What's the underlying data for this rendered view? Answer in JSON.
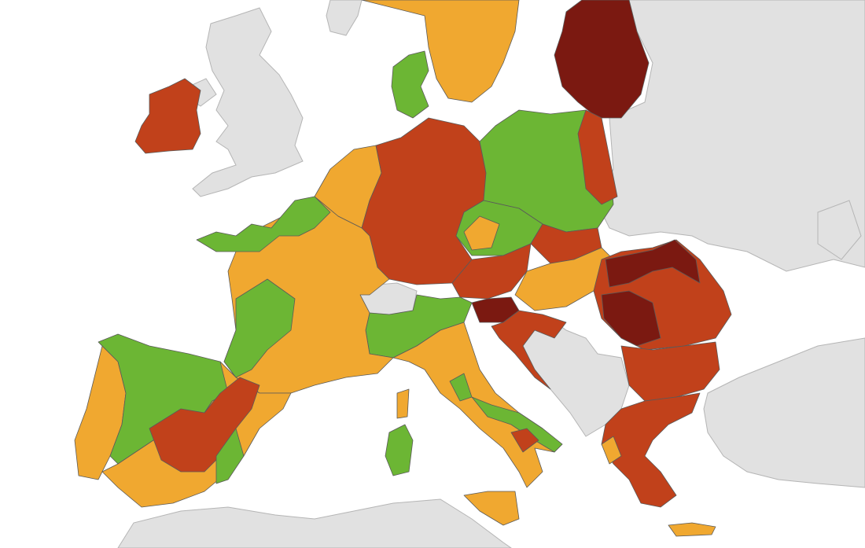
{
  "map": {
    "sea_color": "#ffffff",
    "non_eu_color": "#e1e1e1",
    "region_colors": [
      "#6cb634",
      "#f0a830",
      "#c1411b",
      "#7b1911"
    ]
  }
}
